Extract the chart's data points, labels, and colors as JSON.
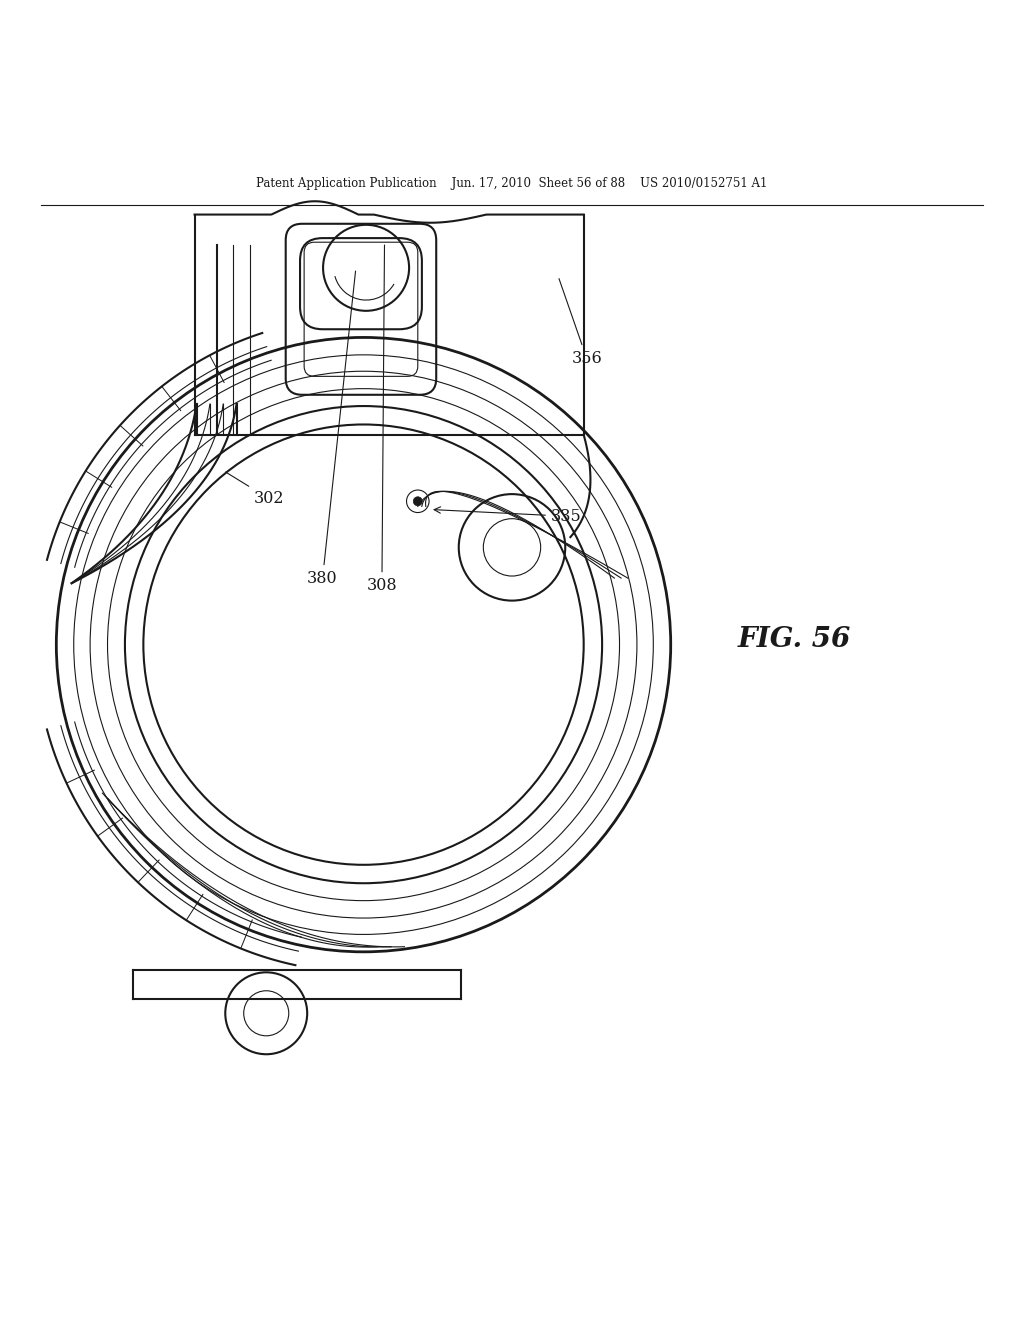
{
  "bg_color": "#ffffff",
  "line_color": "#1a1a1a",
  "header_text": "Patent Application Publication    Jun. 17, 2010  Sheet 56 of 88    US 2010/0152751 A1",
  "fig_label": "FIG. 56",
  "line_width": 1.5,
  "thin_line": 0.8
}
